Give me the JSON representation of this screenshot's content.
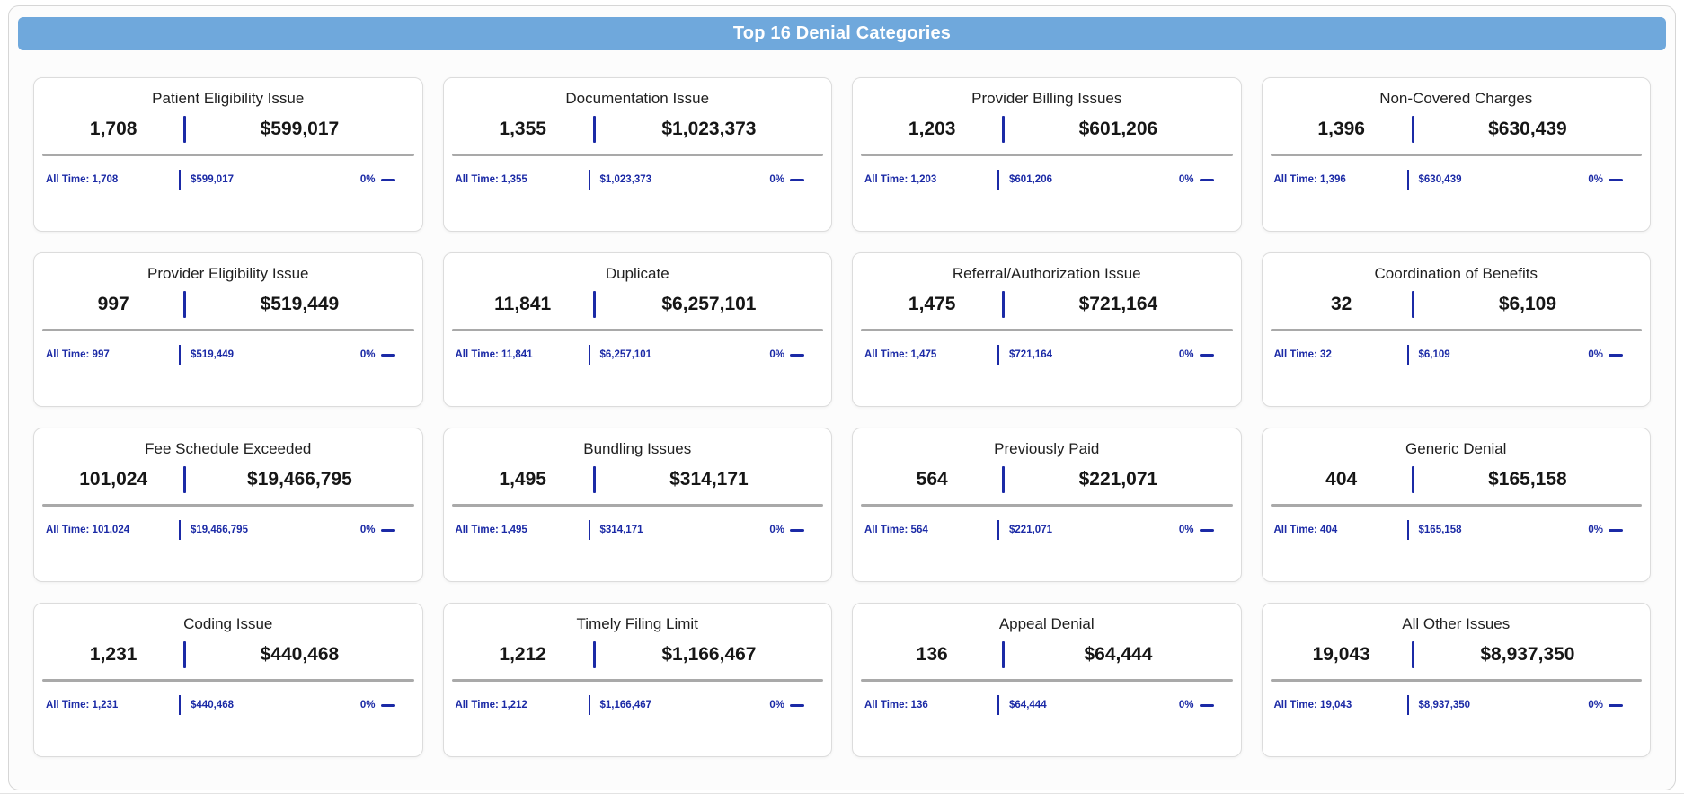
{
  "header": {
    "title": "Top 16 Denial Categories"
  },
  "colors": {
    "header_bg": "#6fa8dc",
    "accent": "#1b2aa6",
    "rule_gray": "#a9a9a9"
  },
  "cards": [
    {
      "title": "Patient Eligibility Issue",
      "count": "1,708",
      "amount": "$599,017",
      "all_time_count": "All Time: 1,708",
      "all_time_amount": "$599,017",
      "trend_percent": "0%"
    },
    {
      "title": "Documentation Issue",
      "count": "1,355",
      "amount": "$1,023,373",
      "all_time_count": "All Time: 1,355",
      "all_time_amount": "$1,023,373",
      "trend_percent": "0%"
    },
    {
      "title": "Provider Billing Issues",
      "count": "1,203",
      "amount": "$601,206",
      "all_time_count": "All Time: 1,203",
      "all_time_amount": "$601,206",
      "trend_percent": "0%"
    },
    {
      "title": "Non-Covered Charges",
      "count": "1,396",
      "amount": "$630,439",
      "all_time_count": "All Time: 1,396",
      "all_time_amount": "$630,439",
      "trend_percent": "0%"
    },
    {
      "title": "Provider Eligibility Issue",
      "count": "997",
      "amount": "$519,449",
      "all_time_count": "All Time: 997",
      "all_time_amount": "$519,449",
      "trend_percent": "0%"
    },
    {
      "title": "Duplicate",
      "count": "11,841",
      "amount": "$6,257,101",
      "all_time_count": "All Time: 11,841",
      "all_time_amount": "$6,257,101",
      "trend_percent": "0%"
    },
    {
      "title": "Referral/Authorization Issue",
      "count": "1,475",
      "amount": "$721,164",
      "all_time_count": "All Time: 1,475",
      "all_time_amount": "$721,164",
      "trend_percent": "0%"
    },
    {
      "title": "Coordination of Benefits",
      "count": "32",
      "amount": "$6,109",
      "all_time_count": "All Time: 32",
      "all_time_amount": "$6,109",
      "trend_percent": "0%"
    },
    {
      "title": "Fee Schedule Exceeded",
      "count": "101,024",
      "amount": "$19,466,795",
      "all_time_count": "All Time: 101,024",
      "all_time_amount": "$19,466,795",
      "trend_percent": "0%"
    },
    {
      "title": "Bundling Issues",
      "count": "1,495",
      "amount": "$314,171",
      "all_time_count": "All Time: 1,495",
      "all_time_amount": "$314,171",
      "trend_percent": "0%"
    },
    {
      "title": "Previously Paid",
      "count": "564",
      "amount": "$221,071",
      "all_time_count": "All Time: 564",
      "all_time_amount": "$221,071",
      "trend_percent": "0%"
    },
    {
      "title": "Generic Denial",
      "count": "404",
      "amount": "$165,158",
      "all_time_count": "All Time: 404",
      "all_time_amount": "$165,158",
      "trend_percent": "0%"
    },
    {
      "title": "Coding Issue",
      "count": "1,231",
      "amount": "$440,468",
      "all_time_count": "All Time: 1,231",
      "all_time_amount": "$440,468",
      "trend_percent": "0%"
    },
    {
      "title": "Timely Filing Limit",
      "count": "1,212",
      "amount": "$1,166,467",
      "all_time_count": "All Time: 1,212",
      "all_time_amount": "$1,166,467",
      "trend_percent": "0%"
    },
    {
      "title": "Appeal Denial",
      "count": "136",
      "amount": "$64,444",
      "all_time_count": "All Time: 136",
      "all_time_amount": "$64,444",
      "trend_percent": "0%"
    },
    {
      "title": "All Other Issues",
      "count": "19,043",
      "amount": "$8,937,350",
      "all_time_count": "All Time: 19,043",
      "all_time_amount": "$8,937,350",
      "trend_percent": "0%"
    }
  ]
}
